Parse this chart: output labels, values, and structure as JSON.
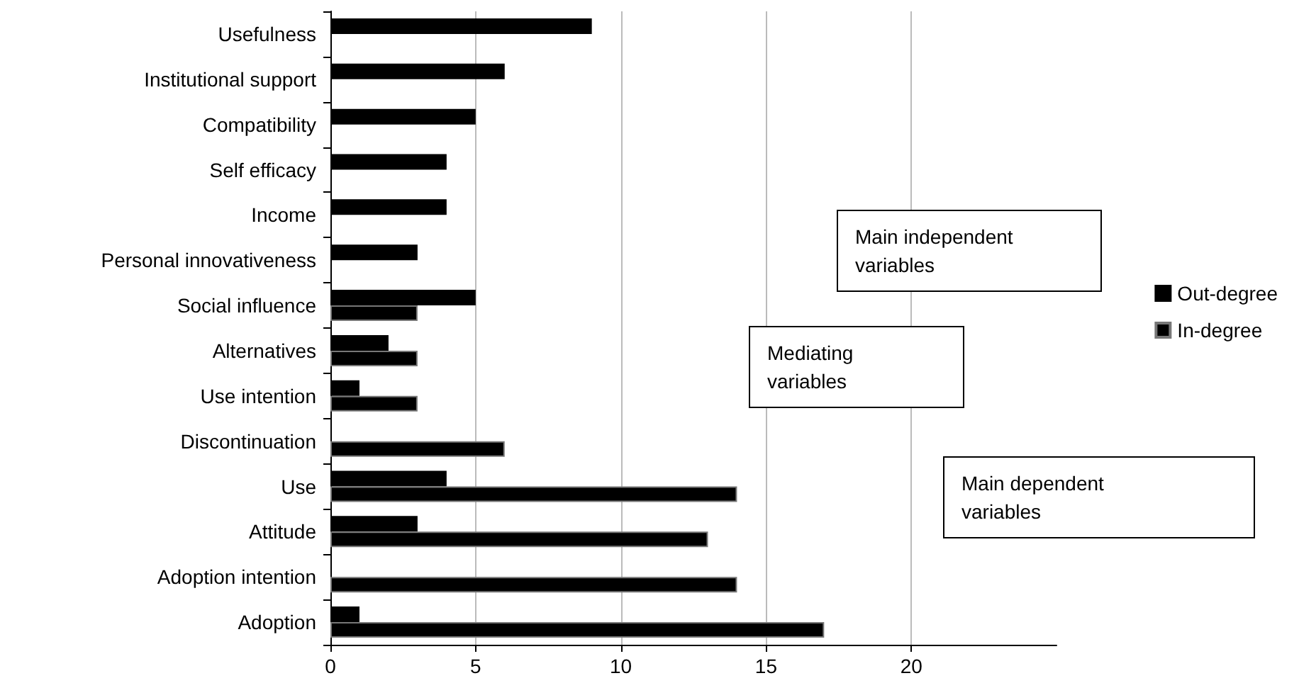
{
  "chart_data": {
    "type": "bar",
    "orientation": "horizontal",
    "categories": [
      "Usefulness",
      "Institutional support",
      "Compatibility",
      "Self efficacy",
      "Income",
      "Personal innovativeness",
      "Social influence",
      "Alternatives",
      "Use intention",
      "Discontinuation",
      "Use",
      "Attitude",
      "Adoption intention",
      "Adoption"
    ],
    "series": [
      {
        "name": "Out-degree",
        "color": "#000000",
        "values": [
          9,
          6,
          5,
          4,
          4,
          3,
          5,
          2,
          1,
          null,
          4,
          3,
          null,
          1
        ]
      },
      {
        "name": "In-degree",
        "color": "#000000",
        "values": [
          null,
          null,
          null,
          null,
          null,
          null,
          3,
          3,
          3,
          6,
          14,
          13,
          14,
          17
        ]
      }
    ],
    "xlim": [
      0,
      25
    ],
    "xticks": [
      0,
      5,
      10,
      15,
      20
    ],
    "grid": "x",
    "legend": "right",
    "annotations": [
      "Main independent variables",
      "Mediating variables",
      "Main dependent variables"
    ]
  }
}
